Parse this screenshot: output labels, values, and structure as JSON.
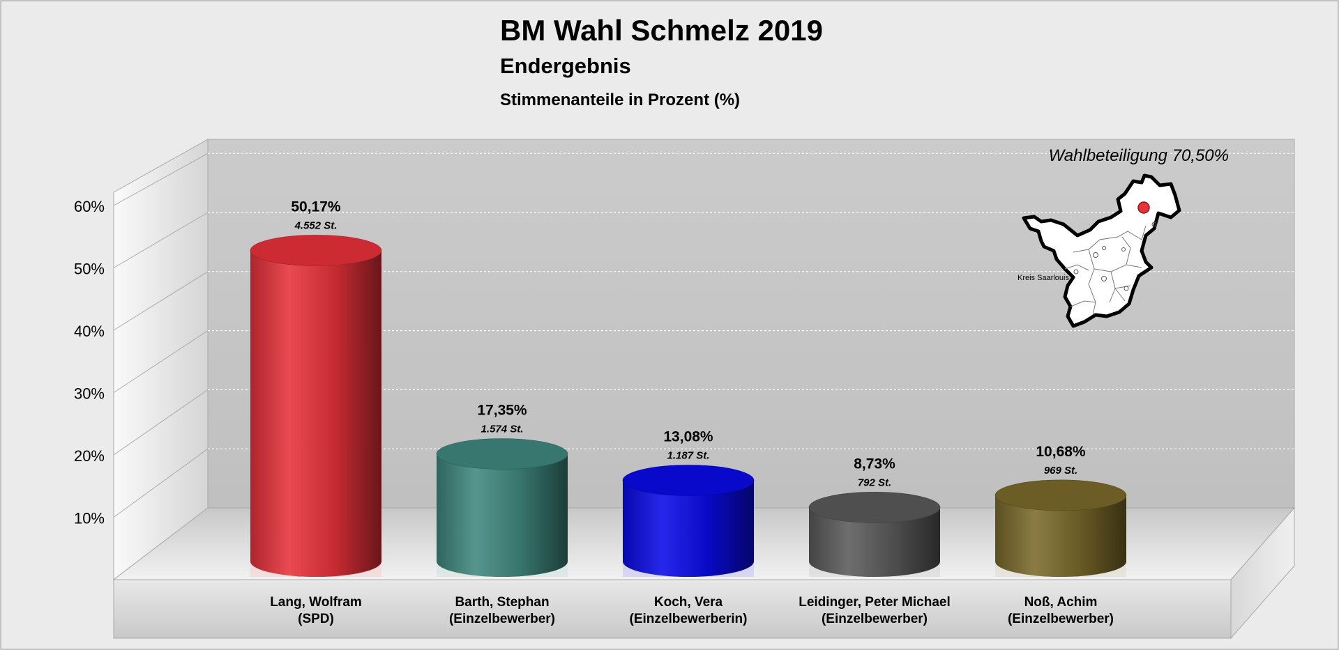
{
  "chart_data": {
    "type": "bar",
    "title": "BM Wahl Schmelz 2019",
    "subtitle": "Endergebnis",
    "ylabel": "Stimmenanteile in Prozent (%)",
    "annotation": "Wahlbeteiligung 70,50%",
    "ylim": [
      0,
      60
    ],
    "yticks": [
      10,
      20,
      30,
      40,
      50,
      60
    ],
    "ytick_labels": [
      "10%",
      "20%",
      "30%",
      "40%",
      "50%",
      "60%"
    ],
    "grid": true,
    "categories": [
      [
        "Lang, Wolfram",
        "(SPD)"
      ],
      [
        "Barth, Stephan",
        "(Einzelbewerber)"
      ],
      [
        "Koch, Vera",
        "(Einzelbewerberin)"
      ],
      [
        "Leidinger, Peter Michael",
        "(Einzelbewerber)"
      ],
      [
        "Noß, Achim",
        "(Einzelbewerber)"
      ]
    ],
    "values": [
      50.17,
      17.35,
      13.08,
      8.73,
      10.68
    ],
    "value_labels": [
      "50,17%",
      "17,35%",
      "13,08%",
      "8,73%",
      "10,68%"
    ],
    "votes_labels": [
      "4.552 St.",
      "1.574 St.",
      "1.187 St.",
      "792 St.",
      "969 St."
    ],
    "colors": [
      "#e8313a",
      "#3f877e",
      "#0a0ae8",
      "#5a5a5a",
      "#7a6a2a"
    ]
  },
  "map": {
    "label": "Kreis Saarlouis",
    "icon": "district-map-icon"
  }
}
